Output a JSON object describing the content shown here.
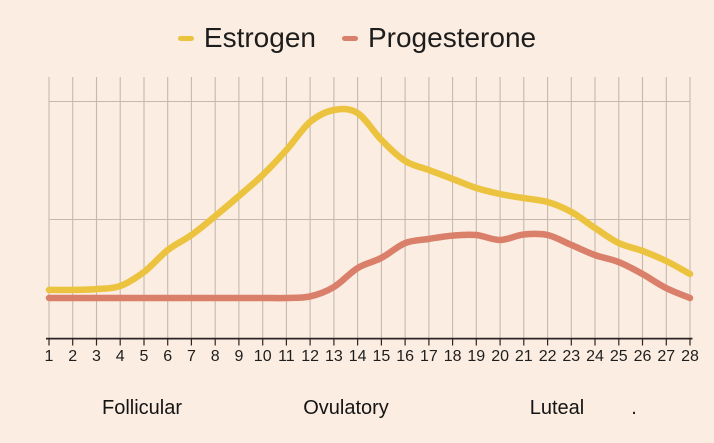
{
  "page": {
    "background_color": "#fbede1",
    "grid_color": "#c5b9ae",
    "text_color": "#1d1d1d"
  },
  "chart_data": {
    "type": "line",
    "title": "",
    "x": [
      1,
      2,
      3,
      4,
      5,
      6,
      7,
      8,
      9,
      10,
      11,
      12,
      13,
      14,
      15,
      16,
      17,
      18,
      19,
      20,
      21,
      22,
      23,
      24,
      25,
      26,
      27,
      28
    ],
    "series": [
      {
        "name": "Estrogen",
        "color": "#ecc33e",
        "values": [
          18.5,
          18.5,
          18.8,
          20.0,
          25.4,
          33.8,
          39.6,
          46.9,
          54.6,
          62.7,
          72.3,
          83.1,
          87.7,
          86.5,
          76.2,
          68.1,
          64.6,
          61.2,
          57.7,
          55.4,
          53.8,
          52.3,
          48.5,
          42.3,
          36.5,
          33.5,
          29.6,
          24.6
        ]
      },
      {
        "name": "Progesterone",
        "color": "#d97f6a",
        "values": [
          15.4,
          15.4,
          15.4,
          15.4,
          15.4,
          15.4,
          15.4,
          15.4,
          15.4,
          15.4,
          15.4,
          16.0,
          19.6,
          26.9,
          30.8,
          36.5,
          38.1,
          39.4,
          39.6,
          37.7,
          39.8,
          39.6,
          35.8,
          31.9,
          29.2,
          24.6,
          19.2,
          15.4
        ]
      }
    ],
    "ylim": [
      0,
      100
    ],
    "yaxis_ticks_visible": false,
    "legend_position": "top",
    "grid": "vertical line per day, two horizontal lines",
    "annotations": [
      "Follicular",
      "Ovulatory",
      "Luteal",
      "."
    ]
  }
}
